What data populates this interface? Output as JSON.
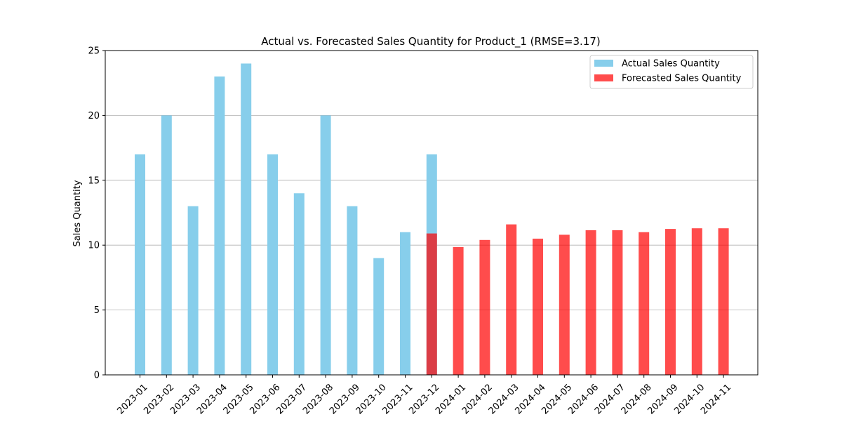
{
  "chart_data": {
    "type": "bar",
    "title": "Actual vs. Forecasted Sales Quantity for Product_1 (RMSE=3.17)",
    "xlabel": "",
    "ylabel": "Sales Quantity",
    "ylim": [
      0,
      25
    ],
    "yticks": [
      0,
      5,
      10,
      15,
      20,
      25
    ],
    "grid": "y",
    "legend_position": "top-right",
    "categories": [
      "2023-01",
      "2023-02",
      "2023-03",
      "2023-04",
      "2023-05",
      "2023-06",
      "2023-07",
      "2023-08",
      "2023-09",
      "2023-10",
      "2023-11",
      "2023-12",
      "2024-01",
      "2024-02",
      "2024-03",
      "2024-04",
      "2024-05",
      "2024-06",
      "2024-07",
      "2024-08",
      "2024-09",
      "2024-10",
      "2024-11"
    ],
    "series": [
      {
        "name": "Actual Sales Quantity",
        "color": "#87ceeb",
        "opacity": 1.0,
        "values": [
          17,
          20,
          13,
          23,
          24,
          17,
          14,
          20,
          13,
          9,
          11,
          17,
          null,
          null,
          null,
          null,
          null,
          null,
          null,
          null,
          null,
          null,
          null
        ]
      },
      {
        "name": "Forecasted Sales Quantity",
        "color": "#ff0000",
        "opacity": 0.7,
        "values": [
          null,
          null,
          null,
          null,
          null,
          null,
          null,
          null,
          null,
          null,
          null,
          10.9,
          9.85,
          10.4,
          11.6,
          10.5,
          10.8,
          11.15,
          11.15,
          11.0,
          11.25,
          11.3,
          11.3
        ]
      }
    ]
  }
}
